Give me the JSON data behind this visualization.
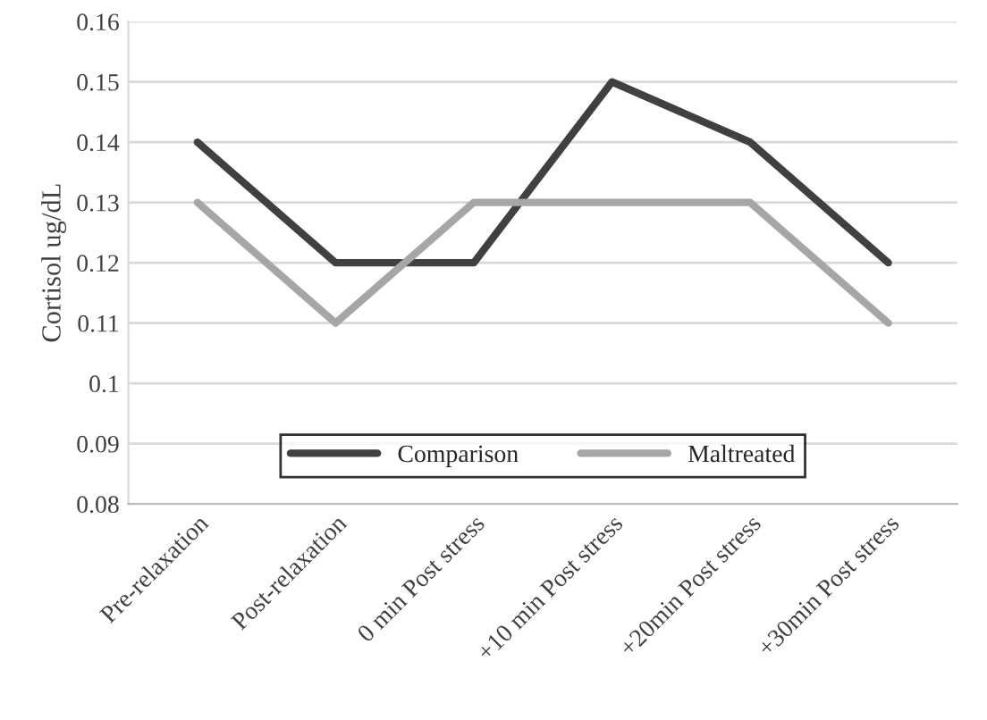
{
  "chart_data": {
    "type": "line",
    "ylabel": "Cortisol ug/dL",
    "categories": [
      "Pre-relaxation",
      "Post-relaxation",
      "0 min Post stress",
      "+10 min Post stress",
      "+20min Post stress",
      "+30min Post stress"
    ],
    "series": [
      {
        "name": "Comparison",
        "color": "#404040",
        "values": [
          0.14,
          0.12,
          0.12,
          0.15,
          0.14,
          0.12
        ]
      },
      {
        "name": "Maltreated",
        "color": "#a6a6a6",
        "values": [
          0.13,
          0.11,
          0.13,
          0.13,
          0.13,
          0.11
        ]
      }
    ],
    "ylim": [
      0.08,
      0.16
    ],
    "yticks": [
      0.08,
      0.09,
      0.1,
      0.11,
      0.12,
      0.13,
      0.14,
      0.15,
      0.16
    ],
    "grid": "y",
    "legend": "bottom",
    "marker": "none",
    "line_style": "solid"
  }
}
